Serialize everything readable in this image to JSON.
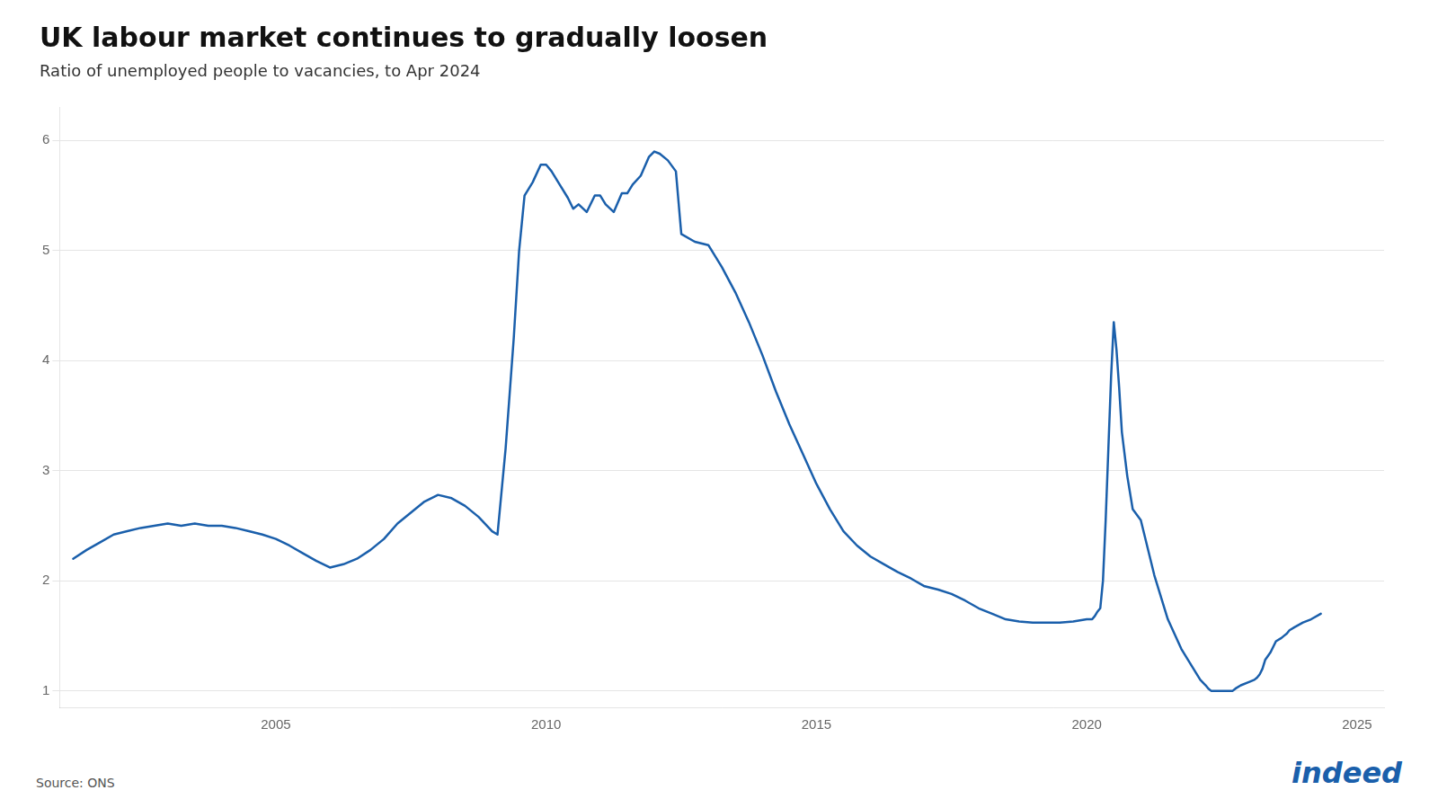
{
  "chart_data": {
    "type": "line",
    "title": "UK labour market continues to gradually loosen",
    "subtitle": "Ratio of unemployed people to vacancies, to Apr 2024",
    "source": "Source: ONS",
    "annotations": [
      "indeed"
    ],
    "color": "#1a5fab",
    "grid": "y",
    "xlim": [
      2001.0,
      2025.5
    ],
    "xticks": [
      2005,
      2010,
      2015,
      2020,
      2025
    ],
    "ylim": [
      0.85,
      6.3
    ],
    "yticks": [
      1,
      2,
      3,
      4,
      5,
      6
    ],
    "x": [
      2001.25,
      2001.5,
      2001.75,
      2002.0,
      2002.25,
      2002.5,
      2002.75,
      2003.0,
      2003.25,
      2003.5,
      2003.75,
      2004.0,
      2004.25,
      2004.5,
      2004.75,
      2005.0,
      2005.25,
      2005.5,
      2005.75,
      2006.0,
      2006.25,
      2006.5,
      2006.75,
      2007.0,
      2007.25,
      2007.5,
      2007.75,
      2008.0,
      2008.25,
      2008.5,
      2008.75,
      2009.0,
      2009.1,
      2009.25,
      2009.4,
      2009.5,
      2009.6,
      2009.75,
      2009.9,
      2010.0,
      2010.1,
      2010.25,
      2010.4,
      2010.5,
      2010.6,
      2010.75,
      2010.9,
      2011.0,
      2011.1,
      2011.25,
      2011.4,
      2011.5,
      2011.6,
      2011.75,
      2011.9,
      2012.0,
      2012.1,
      2012.25,
      2012.4,
      2012.5,
      2012.75,
      2013.0,
      2013.25,
      2013.5,
      2013.75,
      2014.0,
      2014.25,
      2014.5,
      2014.75,
      2015.0,
      2015.25,
      2015.5,
      2015.75,
      2016.0,
      2016.25,
      2016.5,
      2016.75,
      2017.0,
      2017.25,
      2017.5,
      2017.75,
      2018.0,
      2018.25,
      2018.5,
      2018.75,
      2019.0,
      2019.25,
      2019.5,
      2019.75,
      2020.0,
      2020.1,
      2020.15,
      2020.2,
      2020.25,
      2020.3,
      2020.35,
      2020.4,
      2020.45,
      2020.5,
      2020.55,
      2020.6,
      2020.65,
      2020.75,
      2020.85,
      2021.0,
      2021.25,
      2021.5,
      2021.75,
      2022.0,
      2022.1,
      2022.2,
      2022.25,
      2022.3,
      2022.4,
      2022.5,
      2022.6,
      2022.65,
      2022.7,
      2022.75,
      2022.85,
      2023.0,
      2023.1,
      2023.15,
      2023.2,
      2023.25,
      2023.3,
      2023.4,
      2023.5,
      2023.6,
      2023.65,
      2023.7,
      2023.75,
      2023.85,
      2024.0,
      2024.15,
      2024.33
    ],
    "values": [
      2.2,
      2.28,
      2.35,
      2.42,
      2.45,
      2.48,
      2.5,
      2.52,
      2.5,
      2.52,
      2.5,
      2.5,
      2.48,
      2.45,
      2.42,
      2.38,
      2.32,
      2.25,
      2.18,
      2.12,
      2.15,
      2.2,
      2.28,
      2.38,
      2.52,
      2.62,
      2.72,
      2.78,
      2.75,
      2.68,
      2.58,
      2.45,
      2.42,
      3.2,
      4.2,
      5.0,
      5.5,
      5.62,
      5.78,
      5.78,
      5.72,
      5.6,
      5.48,
      5.38,
      5.42,
      5.35,
      5.5,
      5.5,
      5.42,
      5.35,
      5.52,
      5.52,
      5.6,
      5.68,
      5.85,
      5.9,
      5.88,
      5.82,
      5.72,
      5.15,
      5.08,
      5.05,
      4.85,
      4.62,
      4.35,
      4.05,
      3.72,
      3.42,
      3.15,
      2.88,
      2.65,
      2.45,
      2.32,
      2.22,
      2.15,
      2.08,
      2.02,
      1.95,
      1.92,
      1.88,
      1.82,
      1.75,
      1.7,
      1.65,
      1.63,
      1.62,
      1.62,
      1.62,
      1.63,
      1.65,
      1.65,
      1.68,
      1.72,
      1.75,
      2.0,
      2.55,
      3.2,
      3.85,
      4.35,
      4.1,
      3.75,
      3.35,
      2.95,
      2.65,
      2.55,
      2.05,
      1.65,
      1.38,
      1.18,
      1.1,
      1.05,
      1.02,
      1.0,
      1.0,
      1.0,
      1.0,
      1.0,
      1.0,
      1.02,
      1.05,
      1.08,
      1.1,
      1.12,
      1.15,
      1.2,
      1.28,
      1.35,
      1.45,
      1.48,
      1.5,
      1.52,
      1.55,
      1.58,
      1.62,
      1.65,
      1.7
    ]
  }
}
